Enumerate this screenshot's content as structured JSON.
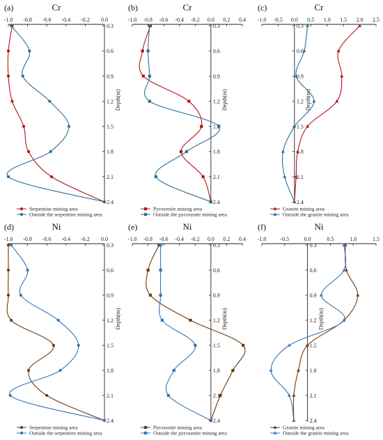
{
  "chart_data": [
    {
      "type": "line",
      "panel": "(a)",
      "title": "Cr",
      "ylabel": "Depth(m)",
      "xlim": [
        -1.0,
        0.0
      ],
      "xticks": [
        -1.0,
        -0.8,
        -0.6,
        -0.4,
        -0.2,
        0.0
      ],
      "depth": [
        0.3,
        0.6,
        0.9,
        1.2,
        1.5,
        1.8,
        2.1,
        2.4
      ],
      "yticks": [
        "0.3",
        "0.6",
        "0.9",
        "1.2",
        "1.5",
        "1.8",
        "2.1",
        "2.4"
      ],
      "series": [
        {
          "name": "Serpentine mining area",
          "color": "#b5121b",
          "marker": "circle",
          "values": [
            -0.96,
            -1.0,
            -1.0,
            -0.96,
            -0.84,
            -0.79,
            -0.55,
            0.0
          ]
        },
        {
          "name": "Outside the serpentine mining area",
          "color": "#2a6f97",
          "marker": "circle",
          "values": [
            -0.97,
            -0.78,
            -0.85,
            -0.57,
            -0.37,
            -0.56,
            -1.0,
            0.0
          ]
        }
      ]
    },
    {
      "type": "line",
      "panel": "(b)",
      "title": "Cr",
      "ylabel": "Depth(m)",
      "xlim": [
        -1.0,
        0.4
      ],
      "xticks": [
        -1.0,
        -0.8,
        -0.6,
        -0.4,
        -0.2,
        0.0,
        0.2,
        0.4
      ],
      "depth": [
        0.3,
        0.6,
        0.9,
        1.2,
        1.5,
        1.8,
        2.1,
        2.4
      ],
      "yticks": [
        "0.3",
        "0.6",
        "0.9",
        "1.2",
        "1.5",
        "1.8",
        "2.1",
        "2.4"
      ],
      "series": [
        {
          "name": "Pyroxenite mining area",
          "color": "#b5121b",
          "marker": "square",
          "values": [
            -0.77,
            -0.87,
            -0.86,
            -0.28,
            -0.12,
            -0.38,
            -0.1,
            0.0
          ]
        },
        {
          "name": "Outside the pyroxenite mining area",
          "color": "#2a6f97",
          "marker": "square",
          "values": [
            -0.78,
            -0.8,
            -0.78,
            -0.78,
            0.1,
            -0.31,
            -0.7,
            0.0
          ]
        }
      ]
    },
    {
      "type": "line",
      "panel": "(c)",
      "title": "Cr",
      "ylabel": "Depth(m)",
      "xlim": [
        -1.0,
        2.5
      ],
      "xticks": [
        -1.0,
        -0.5,
        0.0,
        0.5,
        1.0,
        1.5,
        2.0,
        2.5
      ],
      "depth": [
        0.3,
        0.6,
        0.9,
        1.2,
        1.5,
        1.8,
        2.1,
        2.4
      ],
      "yticks": [
        "0.3",
        "0.6",
        "0.9",
        "1.2",
        "1.5",
        "1.8",
        "2.1",
        "2.4"
      ],
      "series": [
        {
          "name": "Granite mining area",
          "color": "#b5121b",
          "marker": "triangle",
          "values": [
            2.0,
            1.35,
            1.45,
            1.3,
            0.4,
            0.1,
            0.05,
            0.0
          ]
        },
        {
          "name": "Outside the granite mining area",
          "color": "#2a6f97",
          "marker": "triangle",
          "values": [
            0.4,
            0.3,
            0.05,
            0.6,
            0.0,
            -0.35,
            -0.3,
            0.0
          ]
        }
      ]
    },
    {
      "type": "line",
      "panel": "(d)",
      "title": "Ni",
      "ylabel": "Depth(m)",
      "xlim": [
        -1.0,
        0.0
      ],
      "xticks": [
        -1.0,
        -0.8,
        -0.6,
        -0.4,
        -0.2,
        0.0
      ],
      "depth": [
        0.3,
        0.6,
        0.9,
        1.2,
        1.5,
        1.8,
        2.1,
        2.4
      ],
      "yticks": [
        "0.3",
        "0.6",
        "0.9",
        "1.2",
        "1.5",
        "1.8",
        "2.1",
        "2.4"
      ],
      "series": [
        {
          "name": "Serpentine mining area",
          "color": "#6b3a0f",
          "marker": "circle",
          "values": [
            -1.0,
            -1.0,
            -1.0,
            -0.97,
            -0.53,
            -0.79,
            -0.6,
            0.0
          ]
        },
        {
          "name": "Outside the serpentine mining area",
          "color": "#3574b8",
          "marker": "circle",
          "values": [
            -0.97,
            -0.8,
            -0.87,
            -0.48,
            -0.27,
            -0.46,
            -0.98,
            0.0
          ]
        }
      ]
    },
    {
      "type": "line",
      "panel": "(e)",
      "title": "Ni",
      "ylabel": "Depth(m)",
      "xlim": [
        -1.0,
        0.4
      ],
      "xticks": [
        -1.0,
        -0.8,
        -0.6,
        -0.4,
        -0.2,
        0.0,
        0.2,
        0.4
      ],
      "depth": [
        0.3,
        0.6,
        0.9,
        1.2,
        1.5,
        1.8,
        2.1,
        2.4
      ],
      "yticks": [
        "0.3",
        "0.6",
        "0.9",
        "1.2",
        "1.5",
        "1.8",
        "2.1",
        "2.4"
      ],
      "series": [
        {
          "name": "Pyroxenite mining area",
          "color": "#6b3a0f",
          "marker": "square",
          "values": [
            -0.66,
            -0.8,
            -0.77,
            -0.26,
            0.41,
            0.28,
            0.12,
            0.0
          ]
        },
        {
          "name": "Outside the pyroxenite mining area",
          "color": "#3574b8",
          "marker": "square",
          "values": [
            -0.64,
            -0.64,
            -0.64,
            -0.62,
            -0.2,
            -0.47,
            -0.54,
            0.0
          ]
        }
      ]
    },
    {
      "type": "line",
      "panel": "(f)",
      "title": "Ni",
      "ylabel": "Depth(m)",
      "xlim": [
        -1.0,
        1.5
      ],
      "xticks": [
        -1.0,
        -0.5,
        0.0,
        0.5,
        1.0,
        1.5
      ],
      "depth": [
        0.3,
        0.6,
        0.9,
        1.2,
        1.5,
        1.8,
        2.1,
        2.4
      ],
      "yticks": [
        "0.3",
        "0.6",
        "0.9",
        "1.2",
        "1.5",
        "1.8",
        "2.1",
        "2.4"
      ],
      "series": [
        {
          "name": "Granite mining area",
          "color": "#6b3a0f",
          "marker": "triangle",
          "values": [
            0.83,
            0.85,
            1.1,
            0.8,
            -0.0,
            -0.2,
            -0.3,
            -0.3
          ]
        },
        {
          "name": "Outside the granite mining area",
          "color": "#3574b8",
          "marker": "triangle",
          "values": [
            0.8,
            0.8,
            0.3,
            0.8,
            -0.4,
            -0.8,
            -0.4,
            -0.3
          ]
        }
      ]
    }
  ]
}
